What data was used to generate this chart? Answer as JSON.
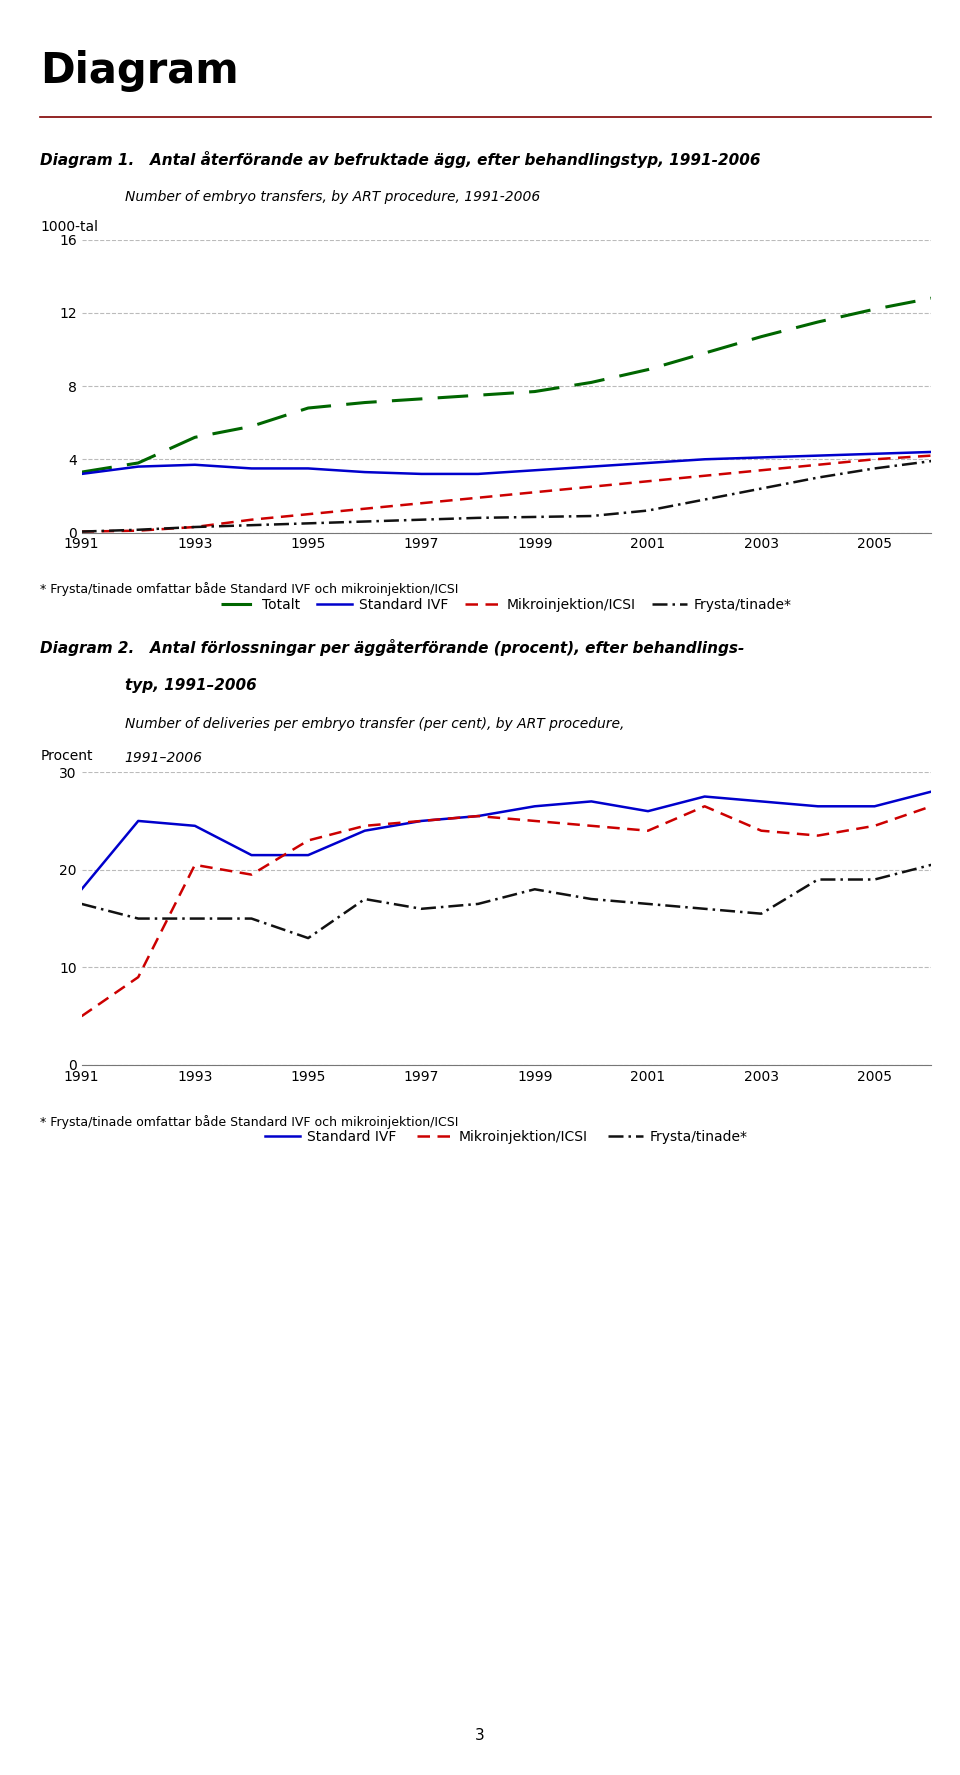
{
  "page_title": "Diagram",
  "page_number": "3",
  "chart1": {
    "title_bold": "Diagram 1.",
    "title_text": "Antal återförande av befruktade ägg, efter behandlingstyp, 1991-2006",
    "subtitle": "Number of embryo transfers, by ART procedure, 1991-2006",
    "ylabel": "1000-tal",
    "ylim": [
      0,
      16
    ],
    "yticks": [
      0,
      4,
      8,
      12,
      16
    ],
    "years": [
      1991,
      1992,
      1993,
      1994,
      1995,
      1996,
      1997,
      1998,
      1999,
      2000,
      2001,
      2002,
      2003,
      2004,
      2005,
      2006
    ],
    "totalt": [
      3.3,
      3.8,
      5.2,
      5.8,
      6.8,
      7.1,
      7.3,
      7.5,
      7.7,
      8.2,
      8.9,
      9.8,
      10.7,
      11.5,
      12.2,
      12.8
    ],
    "standard": [
      3.2,
      3.6,
      3.7,
      3.5,
      3.5,
      3.3,
      3.2,
      3.2,
      3.4,
      3.6,
      3.8,
      4.0,
      4.1,
      4.2,
      4.3,
      4.4
    ],
    "mikro": [
      0.05,
      0.1,
      0.3,
      0.7,
      1.0,
      1.3,
      1.6,
      1.9,
      2.2,
      2.5,
      2.8,
      3.1,
      3.4,
      3.7,
      4.0,
      4.2
    ],
    "frysta": [
      0.05,
      0.15,
      0.3,
      0.4,
      0.5,
      0.6,
      0.7,
      0.8,
      0.85,
      0.9,
      1.2,
      1.8,
      2.4,
      3.0,
      3.5,
      3.9
    ],
    "footnote": "* Frysta/tinade omfattar både Standard IVF och mikroinjektion/ICSI",
    "legend_labels": [
      "Totalt",
      "Standard IVF",
      "Mikroinjektion/ICSI",
      "Frysta/tinade*"
    ]
  },
  "chart2": {
    "title_bold": "Diagram 2.",
    "title_line1": "Antal förlossningar per äggåterförande (procent), efter behandlings-",
    "title_line2": "typ, 1991–2006",
    "subtitle_line1": "Number of deliveries per embryo transfer (per cent), by ART procedure,",
    "subtitle_line2": "1991–2006",
    "ylabel": "Procent",
    "ylim": [
      0,
      30
    ],
    "yticks": [
      0,
      10,
      20,
      30
    ],
    "years": [
      1991,
      1992,
      1993,
      1994,
      1995,
      1996,
      1997,
      1998,
      1999,
      2000,
      2001,
      2002,
      2003,
      2004,
      2005,
      2006
    ],
    "standard": [
      18.0,
      25.0,
      24.5,
      21.5,
      21.5,
      24.0,
      25.0,
      25.5,
      26.5,
      27.0,
      26.0,
      27.5,
      27.0,
      26.5,
      26.5,
      28.0
    ],
    "mikro": [
      5.0,
      9.0,
      20.5,
      19.5,
      23.0,
      24.5,
      25.0,
      25.5,
      25.0,
      24.5,
      24.0,
      26.5,
      24.0,
      23.5,
      24.5,
      26.5
    ],
    "frysta": [
      16.5,
      15.0,
      15.0,
      15.0,
      13.0,
      17.0,
      16.0,
      16.5,
      18.0,
      17.0,
      16.5,
      16.0,
      15.5,
      19.0,
      19.0,
      20.5
    ],
    "footnote": "* Frysta/tinade omfattar både Standard IVF och mikroinjektion/ICSI",
    "legend_labels": [
      "Standard IVF",
      "Mikroinjektion/ICSI",
      "Frysta/tinade*"
    ]
  },
  "colors": {
    "totalt": "#006600",
    "standard": "#0000CC",
    "mikro": "#CC0000",
    "frysta": "#111111",
    "grid": "#BBBBBB",
    "separator": "#800000"
  },
  "background": "#FFFFFF"
}
